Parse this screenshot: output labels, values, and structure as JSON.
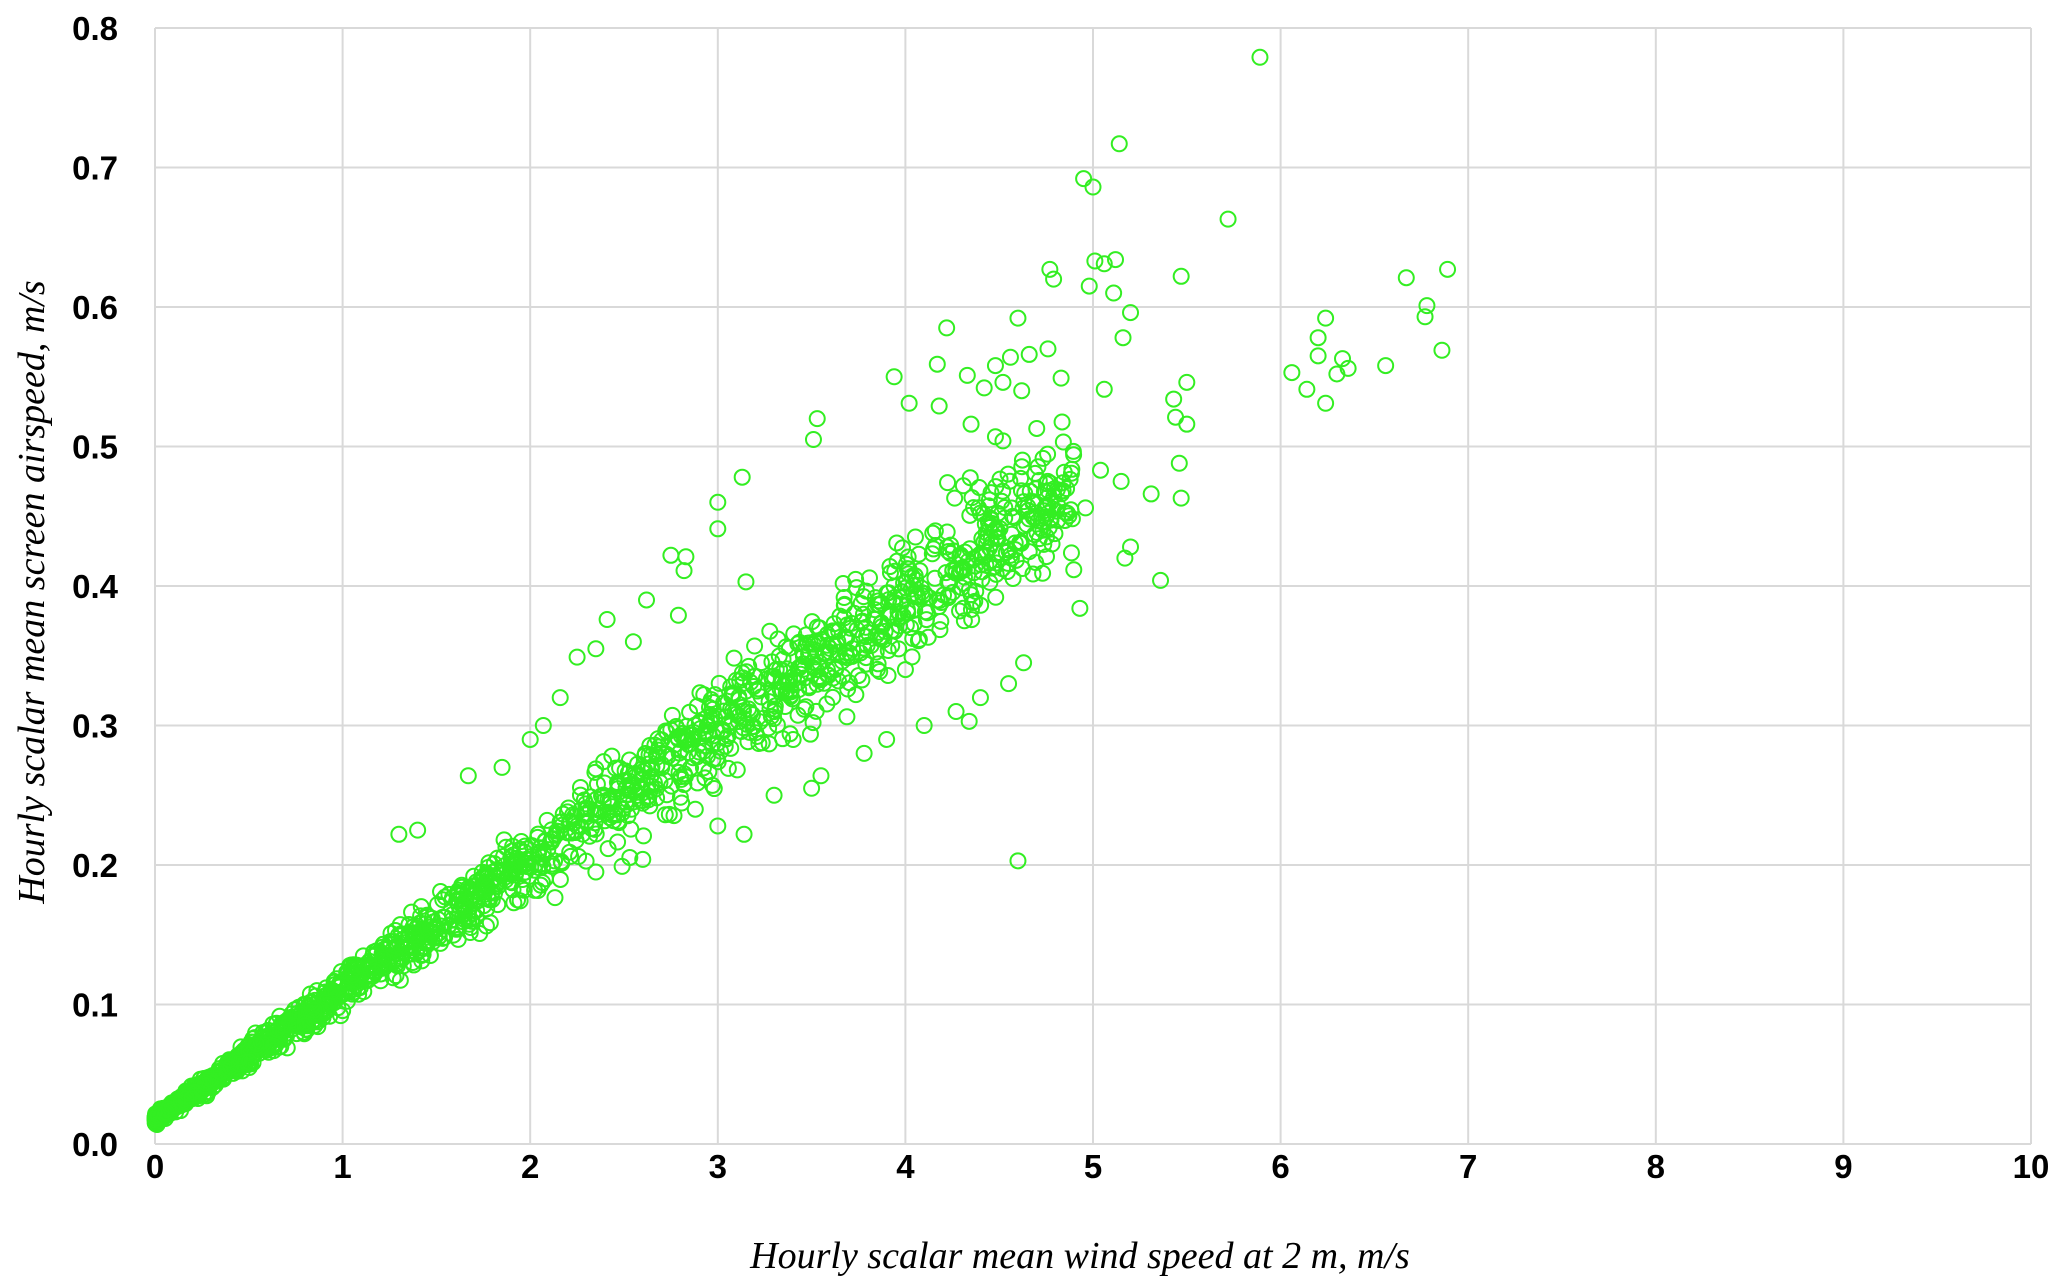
{
  "chart_data": {
    "type": "scatter",
    "xlabel": "Hourly scalar mean wind speed at 2 m, m/s",
    "ylabel": "Hourly scalar mean screen airspeed, m/s",
    "xlim": [
      0,
      10
    ],
    "ylim": [
      0,
      0.8
    ],
    "x_ticks": [
      "0",
      "1",
      "2",
      "3",
      "4",
      "5",
      "6",
      "7",
      "8",
      "9",
      "10"
    ],
    "y_ticks": [
      "0.0",
      "0.1",
      "0.2",
      "0.3",
      "0.4",
      "0.5",
      "0.6",
      "0.7",
      "0.8"
    ],
    "grid": true,
    "legend": "none",
    "marker": "open-circle",
    "color": "#33ee22",
    "series": [
      {
        "points": [
          [
            5.89,
            0.779
          ],
          [
            5.14,
            0.717
          ],
          [
            4.95,
            0.692
          ],
          [
            5.0,
            0.686
          ],
          [
            5.72,
            0.663
          ],
          [
            4.77,
            0.627
          ],
          [
            4.79,
            0.62
          ],
          [
            5.06,
            0.631
          ],
          [
            5.12,
            0.634
          ],
          [
            5.01,
            0.633
          ],
          [
            4.98,
            0.615
          ],
          [
            5.11,
            0.61
          ],
          [
            5.2,
            0.596
          ],
          [
            5.16,
            0.578
          ],
          [
            5.47,
            0.622
          ],
          [
            4.6,
            0.592
          ],
          [
            4.22,
            0.585
          ],
          [
            4.76,
            0.57
          ],
          [
            4.66,
            0.566
          ],
          [
            4.56,
            0.564
          ],
          [
            4.48,
            0.558
          ],
          [
            4.17,
            0.559
          ],
          [
            4.33,
            0.551
          ],
          [
            4.52,
            0.546
          ],
          [
            4.83,
            0.549
          ],
          [
            5.06,
            0.541
          ],
          [
            3.94,
            0.55
          ],
          [
            4.42,
            0.542
          ],
          [
            3.53,
            0.52
          ],
          [
            3.51,
            0.505
          ],
          [
            4.02,
            0.531
          ],
          [
            4.18,
            0.529
          ],
          [
            4.35,
            0.516
          ],
          [
            4.48,
            0.507
          ],
          [
            4.52,
            0.504
          ],
          [
            4.62,
            0.54
          ],
          [
            5.43,
            0.534
          ],
          [
            5.5,
            0.546
          ],
          [
            5.44,
            0.521
          ],
          [
            5.5,
            0.516
          ],
          [
            6.06,
            0.553
          ],
          [
            6.14,
            0.541
          ],
          [
            6.24,
            0.592
          ],
          [
            6.2,
            0.578
          ],
          [
            6.2,
            0.565
          ],
          [
            6.33,
            0.563
          ],
          [
            6.3,
            0.552
          ],
          [
            6.24,
            0.531
          ],
          [
            6.56,
            0.558
          ],
          [
            6.67,
            0.621
          ],
          [
            6.89,
            0.627
          ],
          [
            6.78,
            0.601
          ],
          [
            6.77,
            0.593
          ],
          [
            6.86,
            0.569
          ],
          [
            6.36,
            0.556
          ],
          [
            5.04,
            0.483
          ],
          [
            5.15,
            0.475
          ],
          [
            5.31,
            0.466
          ],
          [
            5.46,
            0.488
          ],
          [
            5.47,
            0.463
          ],
          [
            5.36,
            0.404
          ],
          [
            5.17,
            0.42
          ],
          [
            5.2,
            0.428
          ],
          [
            4.93,
            0.384
          ],
          [
            4.96,
            0.456
          ],
          [
            3.13,
            0.478
          ],
          [
            3.0,
            0.46
          ],
          [
            3.0,
            0.441
          ],
          [
            2.75,
            0.422
          ],
          [
            2.83,
            0.421
          ],
          [
            2.82,
            0.411
          ],
          [
            3.15,
            0.403
          ],
          [
            2.62,
            0.39
          ],
          [
            2.79,
            0.379
          ],
          [
            2.41,
            0.376
          ],
          [
            2.25,
            0.349
          ],
          [
            2.35,
            0.355
          ],
          [
            2.55,
            0.36
          ],
          [
            2.16,
            0.32
          ],
          [
            2.07,
            0.3
          ],
          [
            2.0,
            0.29
          ],
          [
            4.6,
            0.203
          ],
          [
            3.14,
            0.222
          ],
          [
            3.0,
            0.228
          ],
          [
            2.88,
            0.24
          ],
          [
            2.72,
            0.236
          ],
          [
            2.54,
            0.24
          ],
          [
            2.6,
            0.204
          ],
          [
            2.49,
            0.199
          ],
          [
            2.35,
            0.195
          ],
          [
            1.67,
            0.264
          ],
          [
            1.85,
            0.27
          ],
          [
            1.4,
            0.225
          ],
          [
            1.3,
            0.222
          ],
          [
            3.78,
            0.28
          ],
          [
            3.9,
            0.29
          ],
          [
            4.1,
            0.3
          ],
          [
            4.27,
            0.31
          ],
          [
            4.34,
            0.303
          ],
          [
            4.4,
            0.32
          ],
          [
            4.55,
            0.33
          ],
          [
            4.63,
            0.345
          ],
          [
            3.5,
            0.255
          ],
          [
            3.3,
            0.25
          ],
          [
            3.55,
            0.264
          ]
        ]
      }
    ]
  }
}
